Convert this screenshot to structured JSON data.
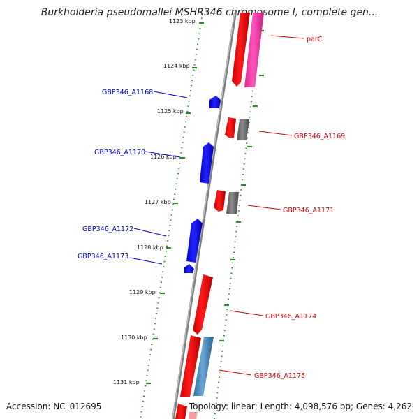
{
  "title": "Burkholderia pseudomallei MSHR346 chromosome I, complete gen...",
  "footer": {
    "accession": "Accession: NC_012695",
    "info": "Topology: linear; Length: 4,098,576 bp; Genes: 4,262"
  },
  "colors": {
    "minus_strand_label": "#0000cc",
    "plus_strand_label": "#cc0000",
    "minus_strand_gene": "#0000ff",
    "plus_strand_gene": "#ff0000",
    "pink_track": "#ff33aa",
    "gray_track": "#777777",
    "steelblue_track": "#4a88c0",
    "scale_ticks": "#2a8a2a",
    "backbone": "#888888"
  },
  "ticks": [
    {
      "label": "1123 kbp"
    },
    {
      "label": "1124 kbp"
    },
    {
      "label": "1125 kbp"
    },
    {
      "label": "1126 kbp"
    },
    {
      "label": "1127 kbp"
    },
    {
      "label": "1128 kbp"
    },
    {
      "label": "1129 kbp"
    },
    {
      "label": "1130 kbp"
    },
    {
      "label": "1131 kbp"
    }
  ],
  "gene_labels": [
    {
      "text": "parC",
      "strand": "plus"
    },
    {
      "text": "GBP346_A1168",
      "strand": "minus"
    },
    {
      "text": "GBP346_A1169",
      "strand": "plus"
    },
    {
      "text": "GBP346_A1170",
      "strand": "minus"
    },
    {
      "text": "GBP346_A1171",
      "strand": "plus"
    },
    {
      "text": "GBP346_A1172",
      "strand": "minus"
    },
    {
      "text": "GBP346_A1173",
      "strand": "minus"
    },
    {
      "text": "GBP346_A1174",
      "strand": "plus"
    },
    {
      "text": "GBP346_A1175",
      "strand": "plus"
    }
  ]
}
